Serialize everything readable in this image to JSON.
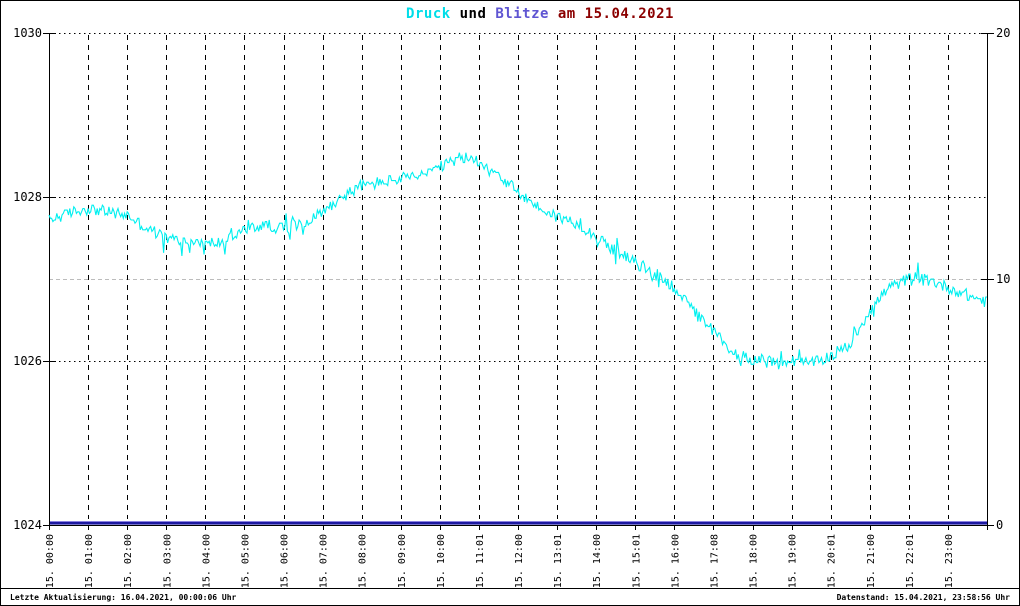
{
  "title": {
    "full": "Druck und Blitze am 15.04.2021",
    "parts": [
      {
        "text": "Druck",
        "color": "#00dde8"
      },
      {
        "text": " und ",
        "color": "#000000"
      },
      {
        "text": "Blitze",
        "color": "#5f55d2"
      },
      {
        "text": " am 15.04.2021",
        "color": "#8b0000"
      }
    ]
  },
  "footer": {
    "left": "Letzte Aktualisierung: 16.04.2021, 00:00:06 Uhr",
    "right": "Datenstand: 15.04.2021, 23:58:56 Uhr"
  },
  "chart_data": {
    "type": "line",
    "title": "Druck und Blitze am 15.04.2021",
    "x_axis": {
      "tick_labels": [
        "15. 00:00",
        "15. 01:00",
        "15. 02:00",
        "15. 03:00",
        "15. 04:00",
        "15. 05:00",
        "15. 06:00",
        "15. 07:00",
        "15. 08:00",
        "15. 09:00",
        "15. 10:00",
        "15. 11:01",
        "15. 12:00",
        "15. 13:01",
        "15. 14:00",
        "15. 15:01",
        "15. 16:00",
        "15. 17:08",
        "15. 18:00",
        "15. 19:00",
        "15. 20:01",
        "15. 21:00",
        "15. 22:01",
        "15. 23:00"
      ],
      "hours_range": [
        0,
        24
      ]
    },
    "left_axis": {
      "min": 1024,
      "max": 1030,
      "tick_values": [
        1024,
        1026,
        1028,
        1030
      ],
      "tick_labels": [
        "1024",
        "1026",
        "1028",
        "1030"
      ]
    },
    "right_axis": {
      "min": 0,
      "max": 20,
      "tick_values": [
        0,
        10,
        20
      ],
      "tick_labels": [
        "0",
        "10",
        "20"
      ]
    },
    "hgrid": [
      {
        "axis": "left",
        "value": 1030,
        "style": "dotted",
        "color": "#000000"
      },
      {
        "axis": "left",
        "value": 1028,
        "style": "dotted",
        "color": "#000000"
      },
      {
        "axis": "left",
        "value": 1026,
        "style": "dotted",
        "color": "#000000"
      },
      {
        "axis": "right",
        "value": 10,
        "style": "dashed",
        "color": "#bcbcbc"
      }
    ],
    "series": [
      {
        "name": "Druck",
        "axis": "left",
        "color": "#00f0f0",
        "x_step_hours": 0.5,
        "values": [
          1027.72,
          1027.8,
          1027.86,
          1027.82,
          1027.78,
          1027.62,
          1027.5,
          1027.46,
          1027.43,
          1027.46,
          1027.6,
          1027.66,
          1027.62,
          1027.68,
          1027.82,
          1028.0,
          1028.14,
          1028.18,
          1028.22,
          1028.26,
          1028.36,
          1028.48,
          1028.44,
          1028.28,
          1028.06,
          1027.88,
          1027.76,
          1027.68,
          1027.52,
          1027.34,
          1027.2,
          1027.06,
          1026.9,
          1026.6,
          1026.36,
          1026.1,
          1026.02,
          1025.98,
          1026.0,
          1025.97,
          1026.06,
          1026.2,
          1026.62,
          1026.9,
          1027.0,
          1026.99,
          1026.9,
          1026.8,
          1026.72
        ],
        "noise_hpa": 0.07
      },
      {
        "name": "Blitze",
        "axis": "right",
        "color": "#1c18a0",
        "highlight_color": "#8a80e0",
        "constant_value": 0
      }
    ]
  }
}
